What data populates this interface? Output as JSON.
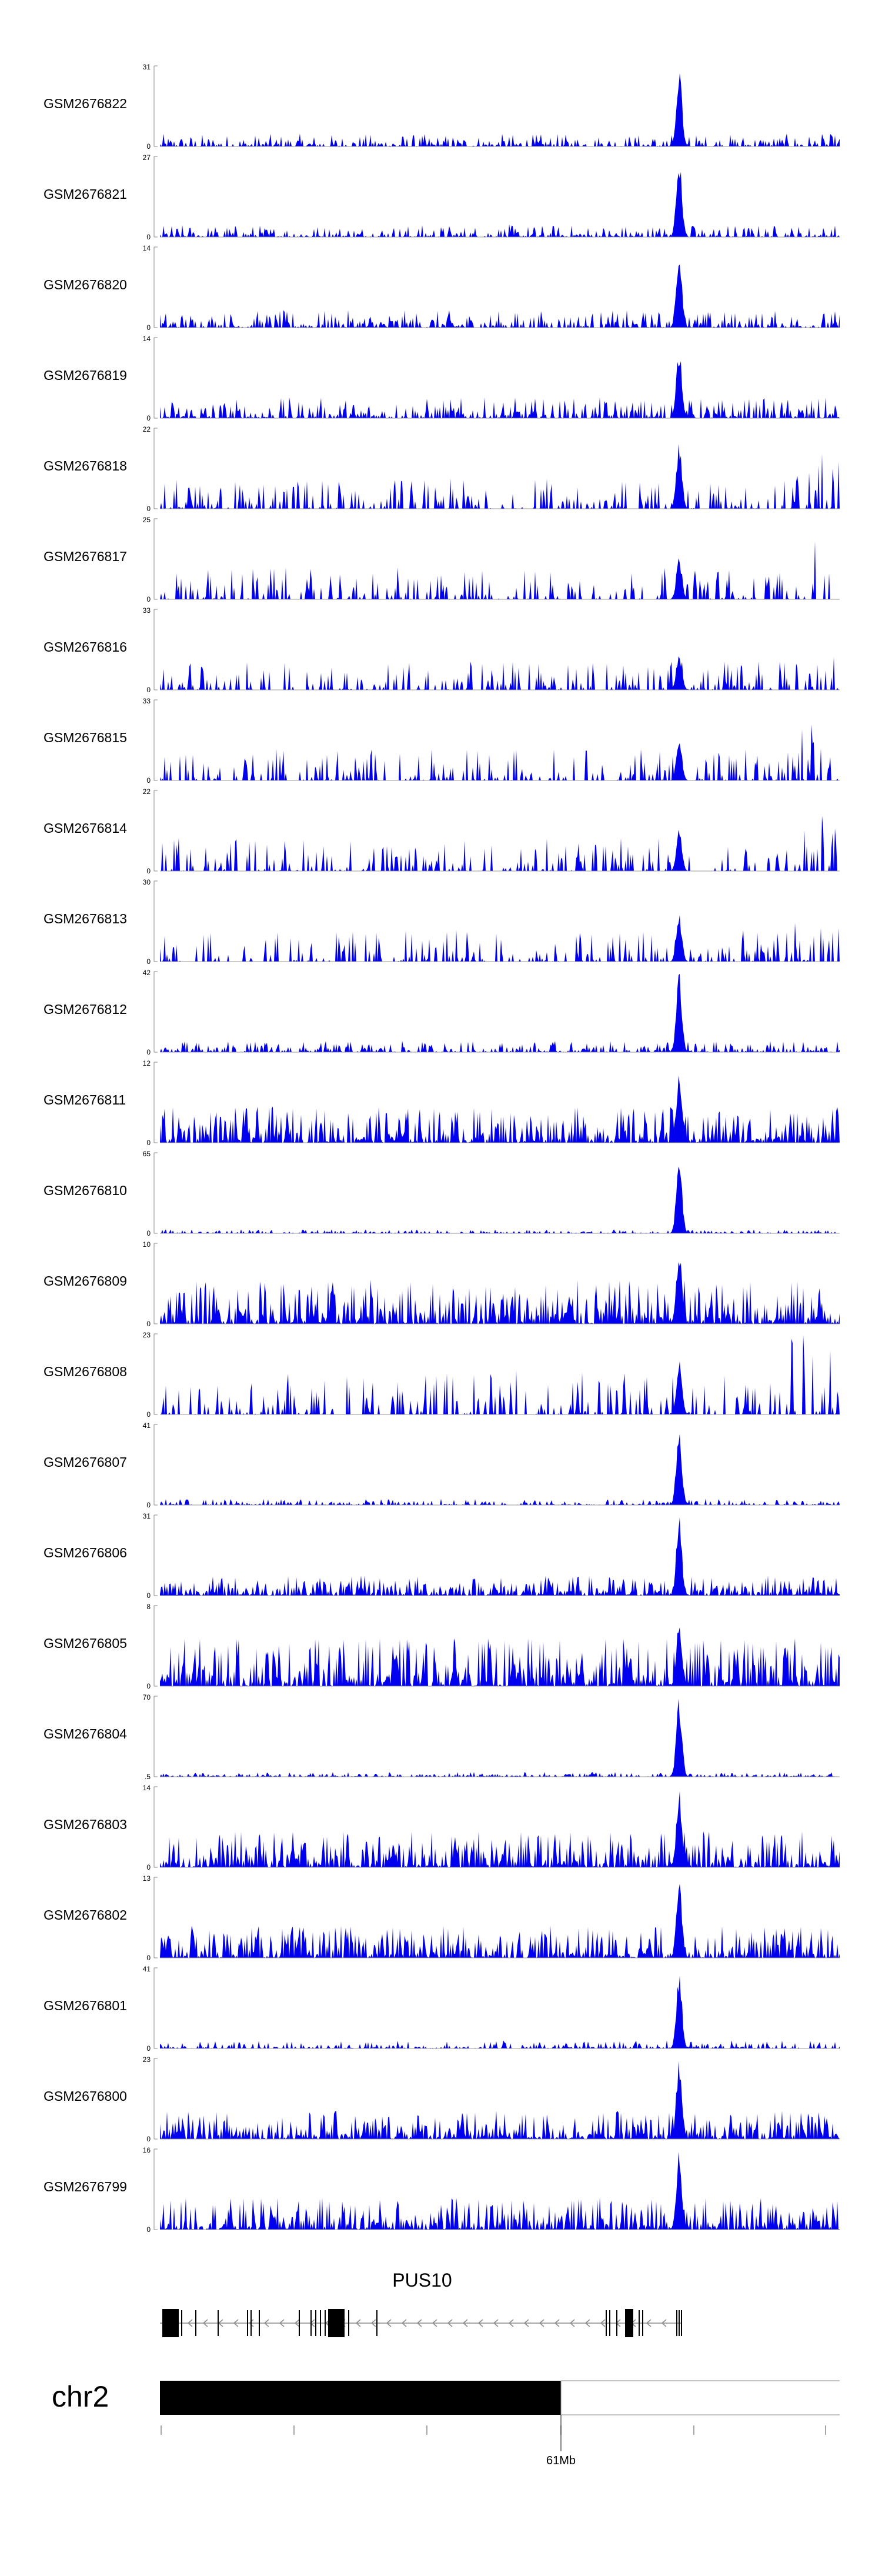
{
  "chart_data": {
    "type": "area",
    "series_color": "#0000ee",
    "tracks": [
      {
        "name": "GSM2676822",
        "ymax": "31",
        "ymin": "0",
        "peak": 1.0,
        "base": 0.16,
        "variant": "flat"
      },
      {
        "name": "GSM2676821",
        "ymax": "27",
        "ymin": "0",
        "peak": 1.0,
        "base": 0.16,
        "variant": "flat"
      },
      {
        "name": "GSM2676820",
        "ymax": "14",
        "ymin": "0",
        "peak": 1.0,
        "base": 0.22,
        "variant": "flat"
      },
      {
        "name": "GSM2676819",
        "ymax": "14",
        "ymin": "0",
        "peak": 0.92,
        "base": 0.26,
        "variant": "flat"
      },
      {
        "name": "GSM2676818",
        "ymax": "22",
        "ymin": "0",
        "peak": 0.86,
        "base": 0.38,
        "variant": "sparse"
      },
      {
        "name": "GSM2676817",
        "ymax": "25",
        "ymin": "0",
        "peak": 0.55,
        "base": 0.4,
        "variant": "sparse"
      },
      {
        "name": "GSM2676816",
        "ymax": "33",
        "ymin": "0",
        "peak": 0.5,
        "base": 0.38,
        "variant": "sparse"
      },
      {
        "name": "GSM2676815",
        "ymax": "33",
        "ymin": "0",
        "peak": 0.55,
        "base": 0.4,
        "variant": "sparse"
      },
      {
        "name": "GSM2676814",
        "ymax": "22",
        "ymin": "0",
        "peak": 0.55,
        "base": 0.42,
        "variant": "sparse"
      },
      {
        "name": "GSM2676813",
        "ymax": "30",
        "ymin": "0",
        "peak": 0.6,
        "base": 0.4,
        "variant": "sparse"
      },
      {
        "name": "GSM2676812",
        "ymax": "42",
        "ymin": "0",
        "peak": 1.0,
        "base": 0.14,
        "variant": "flat"
      },
      {
        "name": "GSM2676811",
        "ymax": "12",
        "ymin": "0",
        "peak": 0.92,
        "base": 0.45,
        "variant": "dense"
      },
      {
        "name": "GSM2676810",
        "ymax": "65",
        "ymin": "0",
        "peak": 1.0,
        "base": 0.05,
        "variant": "flat"
      },
      {
        "name": "GSM2676809",
        "ymax": "10",
        "ymin": "0",
        "peak": 0.95,
        "base": 0.55,
        "variant": "dense"
      },
      {
        "name": "GSM2676808",
        "ymax": "23",
        "ymin": "0",
        "peak": 0.7,
        "base": 0.55,
        "variant": "sparse"
      },
      {
        "name": "GSM2676807",
        "ymax": "41",
        "ymin": "0",
        "peak": 1.0,
        "base": 0.08,
        "variant": "flat"
      },
      {
        "name": "GSM2676806",
        "ymax": "31",
        "ymin": "0",
        "peak": 1.0,
        "base": 0.25,
        "variant": "dense"
      },
      {
        "name": "GSM2676805",
        "ymax": "8",
        "ymin": "0",
        "peak": 0.85,
        "base": 0.6,
        "variant": "dense"
      },
      {
        "name": "GSM2676804",
        "ymax": "70",
        "ymin": ".5",
        "peak": 1.0,
        "base": 0.06,
        "variant": "flat"
      },
      {
        "name": "GSM2676803",
        "ymax": "14",
        "ymin": "0",
        "peak": 1.0,
        "base": 0.45,
        "variant": "dense"
      },
      {
        "name": "GSM2676802",
        "ymax": "13",
        "ymin": "0",
        "peak": 1.0,
        "base": 0.4,
        "variant": "dense"
      },
      {
        "name": "GSM2676801",
        "ymax": "41",
        "ymin": "0",
        "peak": 1.0,
        "base": 0.1,
        "variant": "flat"
      },
      {
        "name": "GSM2676800",
        "ymax": "23",
        "ymin": "0",
        "peak": 1.0,
        "base": 0.35,
        "variant": "dense"
      },
      {
        "name": "GSM2676799",
        "ymax": "16",
        "ymin": "0",
        "peak": 1.0,
        "base": 0.4,
        "variant": "dense"
      }
    ],
    "gene": {
      "name": "PUS10",
      "strand": "-"
    },
    "chromosome": {
      "name": "chr2",
      "tick_label": "61Mb"
    }
  }
}
